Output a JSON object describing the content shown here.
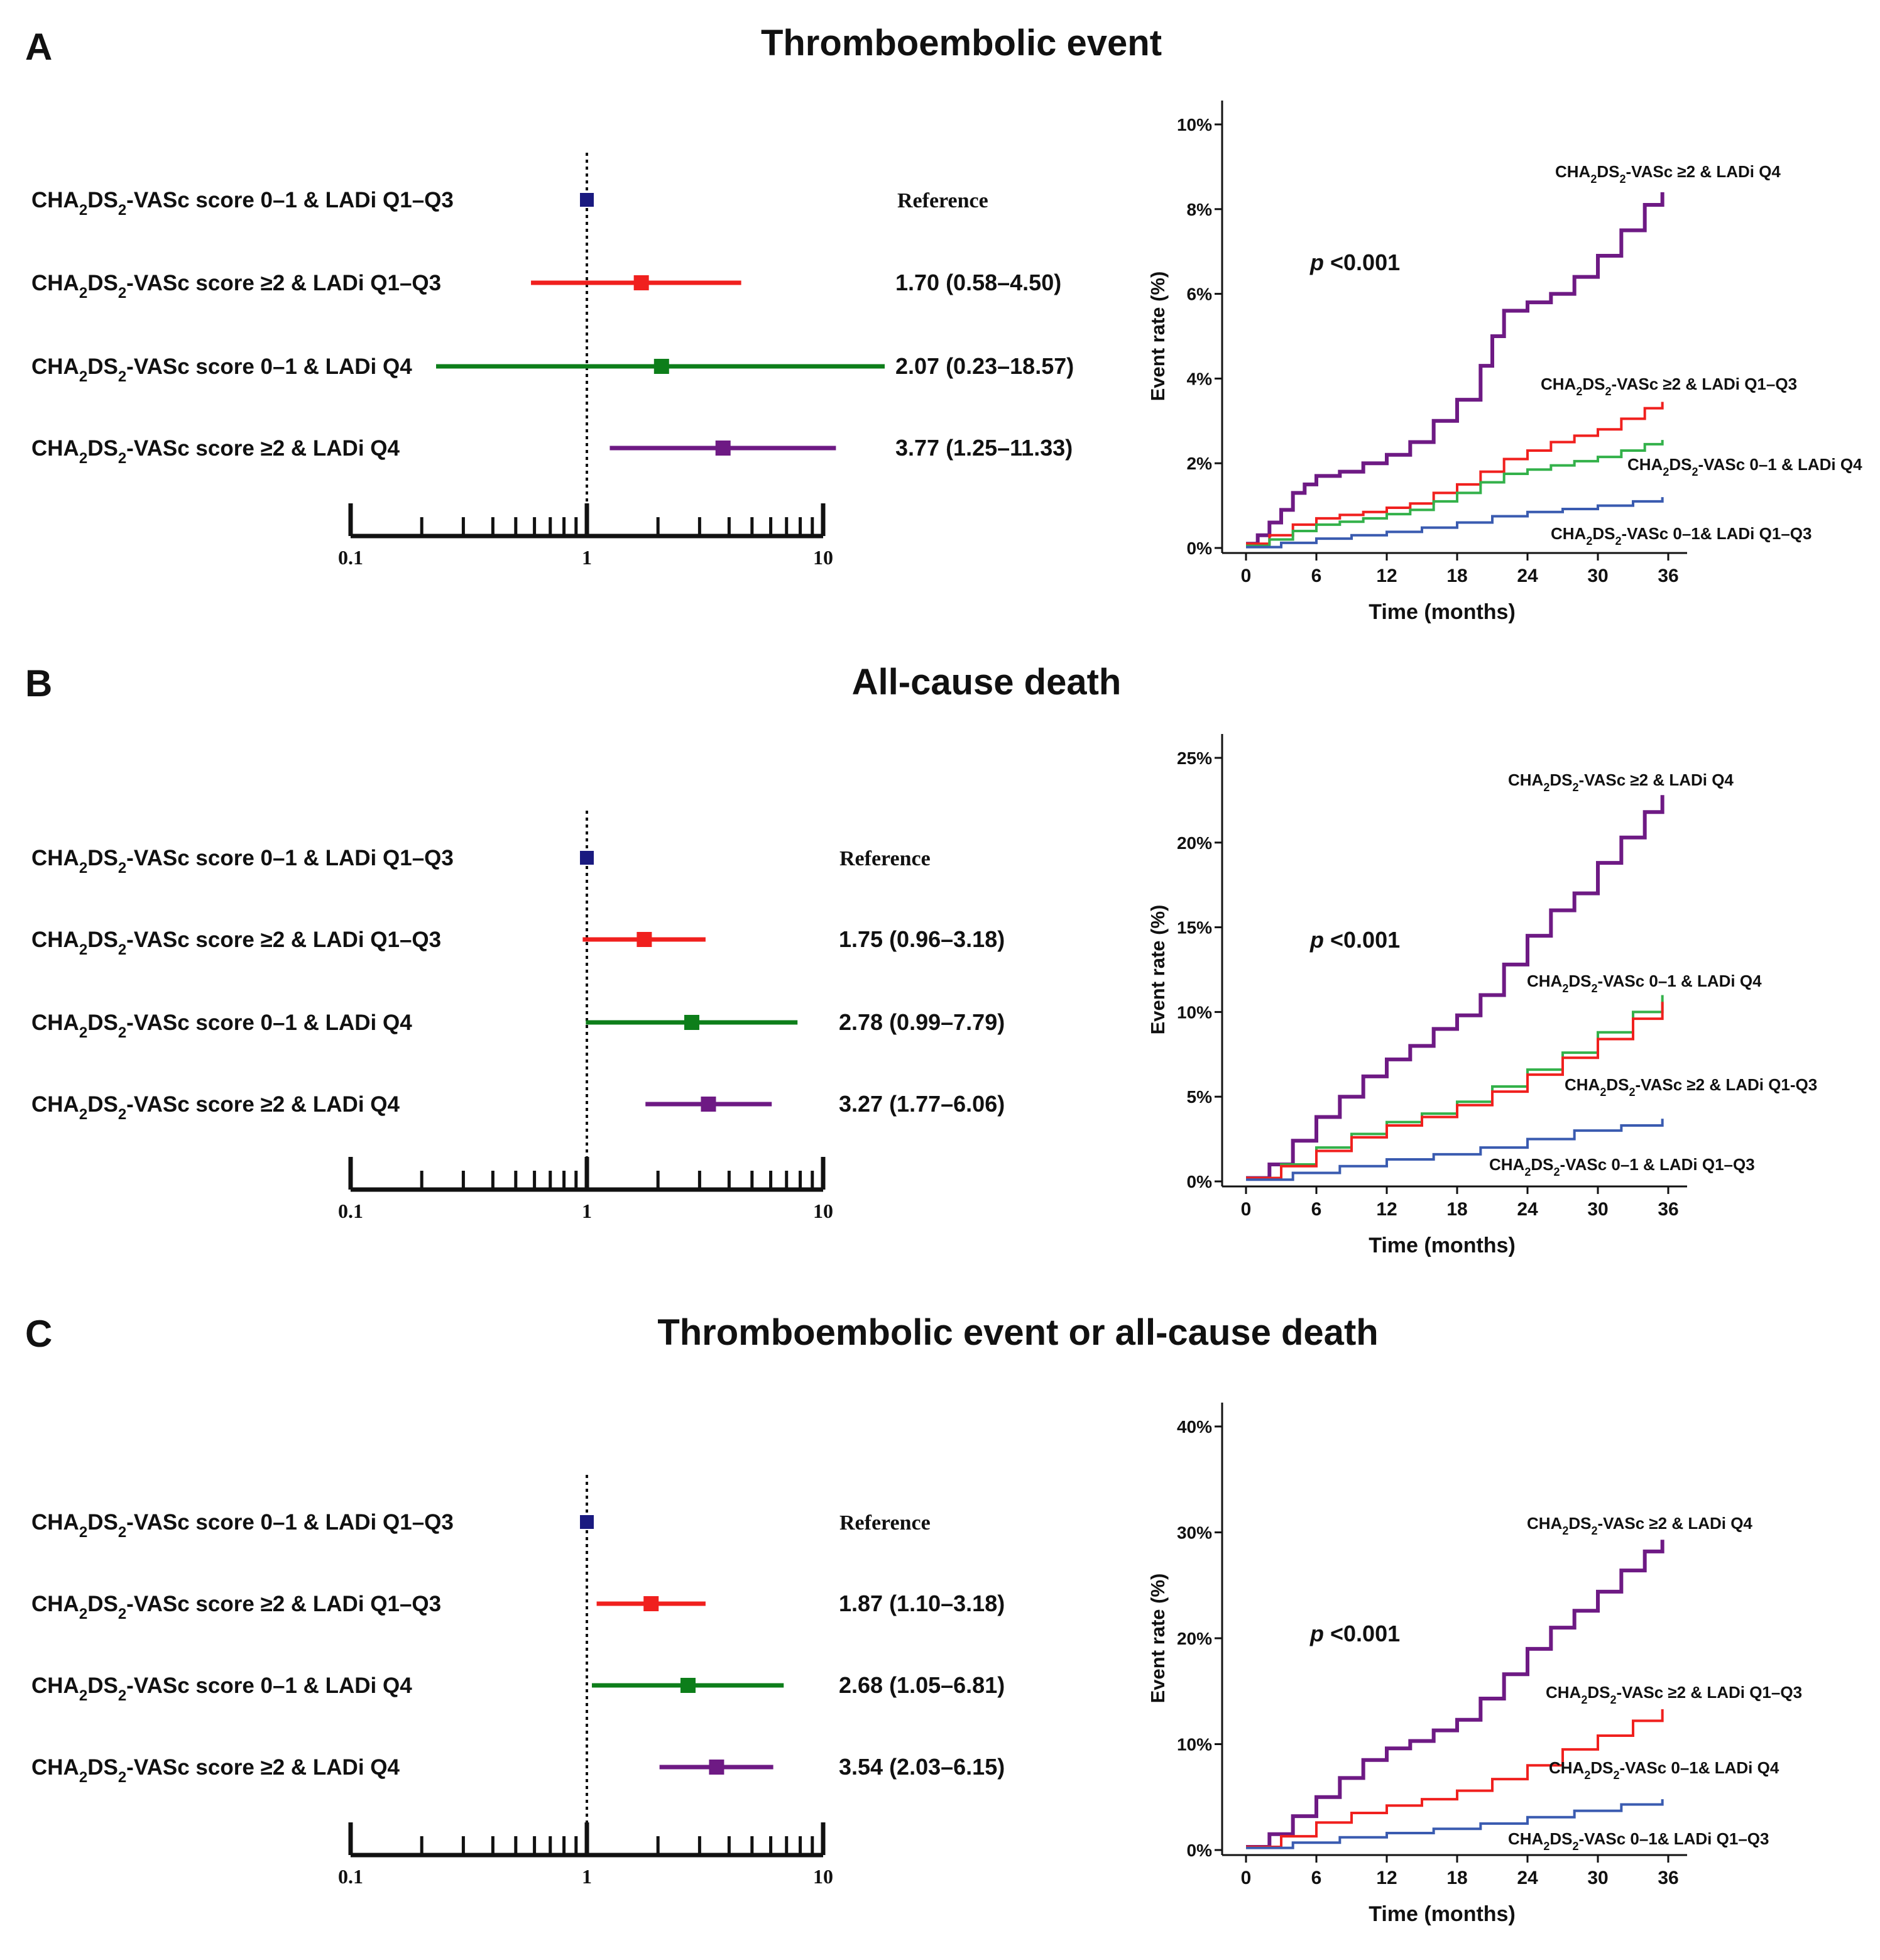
{
  "colors": {
    "blue": "#1a1a80",
    "red": "#f0201e",
    "green": "#0d7e1a",
    "purple": "#6e1a84",
    "km_blue": "#3a5bb0",
    "km_green": "#33b14a"
  },
  "forest_axis": {
    "scale": "log",
    "ticks": [
      {
        "value": 0.1,
        "label": "0.1"
      },
      {
        "value": 1,
        "label": "1"
      },
      {
        "value": 10,
        "label": "10"
      }
    ],
    "minor_ticks": [
      0.2,
      0.3,
      0.4,
      0.5,
      0.6,
      0.7,
      0.8,
      0.9,
      2,
      3,
      4,
      5,
      6,
      7,
      8,
      9
    ],
    "reference_value": 1
  },
  "row_labels": [
    {
      "pre": "CHA",
      "sub1": "2",
      "mid": "DS",
      "sub2": "2",
      "post": "-VASc score 0–1 & LADi Q1–Q3"
    },
    {
      "pre": "CHA",
      "sub1": "2",
      "mid": "DS",
      "sub2": "2",
      "post": "-VASc score ≥2 & LADi Q1–Q3"
    },
    {
      "pre": "CHA",
      "sub1": "2",
      "mid": "DS",
      "sub2": "2",
      "post": "-VASc score 0–1 & LADi Q4"
    },
    {
      "pre": "CHA",
      "sub1": "2",
      "mid": "DS",
      "sub2": "2",
      "post": "-VASc score ≥2 & LADi Q4"
    }
  ],
  "km_x_axis": {
    "label": "Time (months)",
    "ticks": [
      0,
      6,
      12,
      18,
      24,
      30,
      36
    ],
    "range": [
      0,
      36
    ]
  },
  "km_y_label": "Event rate (%)",
  "p_value": {
    "italic": "p",
    "rest": " <0.001"
  },
  "panels": [
    {
      "letter": "A",
      "title": "Thromboembolic event",
      "chart_data": [
        {
          "type": "forest",
          "rows": [
            {
              "hr": 1,
              "lo": null,
              "hi": null,
              "text": "Reference",
              "color": "blue"
            },
            {
              "hr": 1.7,
              "lo": 0.58,
              "hi": 4.5,
              "text": "1.70 (0.58–4.50)",
              "color": "red"
            },
            {
              "hr": 2.07,
              "lo": 0.23,
              "hi": 18.57,
              "text": "2.07 (0.23–18.57)",
              "color": "green"
            },
            {
              "hr": 3.77,
              "lo": 1.25,
              "hi": 11.33,
              "text": "3.77 (1.25–11.33)",
              "color": "purple"
            }
          ]
        },
        {
          "type": "line",
          "y_ticks": [
            0,
            2,
            4,
            6,
            8,
            10
          ],
          "y_tick_suffix": "%",
          "ylim": [
            0,
            10
          ],
          "series": [
            {
              "name": "CHA2DS2-VASc ≥2 & LADi Q4",
              "color": "purple",
              "x": [
                0,
                1,
                2,
                3,
                4,
                5,
                6,
                8,
                10,
                12,
                14,
                16,
                18,
                20,
                21,
                22,
                24,
                26,
                28,
                30,
                32,
                34,
                35.5
              ],
              "y": [
                0.1,
                0.3,
                0.6,
                0.9,
                1.3,
                1.5,
                1.7,
                1.8,
                2.0,
                2.2,
                2.5,
                3.0,
                3.5,
                4.3,
                5.0,
                5.6,
                5.8,
                6.0,
                6.4,
                6.9,
                7.5,
                8.1,
                8.4
              ],
              "label": {
                "pre": "CHA",
                "sub1": "2",
                "mid": "DS",
                "sub2": "2",
                "post": "-VASc ≥2 & LADi Q4"
              }
            },
            {
              "name": "CHA2DS2-VASc ≥2 & LADi Q1–Q3",
              "color": "red",
              "x": [
                0,
                2,
                4,
                6,
                8,
                10,
                12,
                14,
                16,
                18,
                20,
                22,
                24,
                26,
                28,
                30,
                32,
                34,
                35.5
              ],
              "y": [
                0.1,
                0.3,
                0.55,
                0.7,
                0.78,
                0.85,
                0.95,
                1.05,
                1.3,
                1.5,
                1.8,
                2.1,
                2.3,
                2.5,
                2.65,
                2.8,
                3.05,
                3.3,
                3.45
              ],
              "label": {
                "pre": "CHA",
                "sub1": "2",
                "mid": "DS",
                "sub2": "2",
                "post": "-VASc ≥2 & LADi Q1–Q3"
              }
            },
            {
              "name": "CHA2DS2-VASc 0–1 & LADi Q4",
              "color": "km_green",
              "x": [
                0,
                2,
                4,
                6,
                8,
                10,
                12,
                14,
                16,
                18,
                20,
                22,
                24,
                26,
                28,
                30,
                32,
                34,
                35.5
              ],
              "y": [
                0.05,
                0.2,
                0.4,
                0.55,
                0.62,
                0.7,
                0.8,
                0.9,
                1.1,
                1.3,
                1.55,
                1.75,
                1.85,
                1.95,
                2.05,
                2.15,
                2.3,
                2.45,
                2.55
              ],
              "label": {
                "pre": "CHA",
                "sub1": "2",
                "mid": "DS",
                "sub2": "2",
                "post": "-VASc 0–1 & LADi Q4"
              }
            },
            {
              "name": "CHA2DS2-VASc 0–1 & LADi Q1–Q3",
              "color": "km_blue",
              "x": [
                0,
                3,
                6,
                9,
                12,
                15,
                18,
                21,
                24,
                27,
                30,
                33,
                35.5
              ],
              "y": [
                0.02,
                0.12,
                0.22,
                0.3,
                0.38,
                0.48,
                0.6,
                0.75,
                0.85,
                0.92,
                1.0,
                1.1,
                1.2
              ],
              "label": {
                "pre": "CHA",
                "sub1": "2",
                "mid": "DS",
                "sub2": "2",
                "post": "-VASc 0–1& LADi Q1–Q3"
              }
            }
          ]
        }
      ]
    },
    {
      "letter": "B",
      "title": "All-cause death",
      "chart_data": [
        {
          "type": "forest",
          "rows": [
            {
              "hr": 1,
              "lo": null,
              "hi": null,
              "text": "Reference",
              "color": "blue"
            },
            {
              "hr": 1.75,
              "lo": 0.96,
              "hi": 3.18,
              "text": "1.75 (0.96–3.18)",
              "color": "red"
            },
            {
              "hr": 2.78,
              "lo": 0.99,
              "hi": 7.79,
              "text": "2.78 (0.99–7.79)",
              "color": "green"
            },
            {
              "hr": 3.27,
              "lo": 1.77,
              "hi": 6.06,
              "text": "3.27 (1.77–6.06)",
              "color": "purple"
            }
          ]
        },
        {
          "type": "line",
          "y_ticks": [
            0,
            5,
            10,
            15,
            20,
            25
          ],
          "y_tick_suffix": "%",
          "ylim": [
            0,
            25
          ],
          "series": [
            {
              "name": "CHA2DS2-VASc ≥2 & LADi Q4",
              "color": "purple",
              "x": [
                0,
                2,
                4,
                6,
                8,
                10,
                12,
                14,
                16,
                18,
                20,
                22,
                24,
                26,
                28,
                30,
                32,
                34,
                35.5
              ],
              "y": [
                0.2,
                1.0,
                2.4,
                3.8,
                5.0,
                6.2,
                7.2,
                8.0,
                9.0,
                9.8,
                11.0,
                12.8,
                14.5,
                16.0,
                17.0,
                18.8,
                20.3,
                21.8,
                22.8
              ],
              "label": {
                "pre": "CHA",
                "sub1": "2",
                "mid": "DS",
                "sub2": "2",
                "post": "-VASc ≥2 & LADi Q4"
              }
            },
            {
              "name": "CHA2DS2-VASc 0–1 & LADi Q4",
              "color": "km_green",
              "x": [
                0,
                3,
                6,
                9,
                12,
                15,
                18,
                21,
                24,
                27,
                30,
                33,
                35.5
              ],
              "y": [
                0.2,
                1.0,
                2.0,
                2.8,
                3.5,
                4.0,
                4.7,
                5.6,
                6.6,
                7.6,
                8.8,
                10.0,
                11.0
              ],
              "label": {
                "pre": "CHA",
                "sub1": "2",
                "mid": "DS",
                "sub2": "2",
                "post": "-VASc 0–1 & LADi Q4"
              }
            },
            {
              "name": "CHA2DS2-VASc ≥2 & LADi Q1-Q3",
              "color": "red",
              "x": [
                0,
                3,
                6,
                9,
                12,
                15,
                18,
                21,
                24,
                27,
                30,
                33,
                35.5
              ],
              "y": [
                0.2,
                0.9,
                1.8,
                2.6,
                3.3,
                3.8,
                4.5,
                5.3,
                6.3,
                7.3,
                8.4,
                9.6,
                10.6
              ],
              "label": {
                "pre": "CHA",
                "sub1": "2",
                "mid": "DS",
                "sub2": "2",
                "post": "-VASc ≥2 & LADi Q1-Q3"
              }
            },
            {
              "name": "CHA2DS2-VASc 0–1 & LADi Q1–Q3",
              "color": "km_blue",
              "x": [
                0,
                4,
                8,
                12,
                16,
                20,
                24,
                28,
                32,
                35.5
              ],
              "y": [
                0.1,
                0.5,
                0.9,
                1.3,
                1.6,
                2.0,
                2.5,
                3.0,
                3.3,
                3.7
              ],
              "label": {
                "pre": "CHA",
                "sub1": "2",
                "mid": "DS",
                "sub2": "2",
                "post": "-VASc 0–1 & LADi Q1–Q3"
              }
            }
          ]
        }
      ]
    },
    {
      "letter": "C",
      "title": "Thromboembolic event or all-cause death",
      "chart_data": [
        {
          "type": "forest",
          "rows": [
            {
              "hr": 1,
              "lo": null,
              "hi": null,
              "text": "Reference",
              "color": "blue"
            },
            {
              "hr": 1.87,
              "lo": 1.1,
              "hi": 3.18,
              "text": "1.87 (1.10–3.18)",
              "color": "red"
            },
            {
              "hr": 2.68,
              "lo": 1.05,
              "hi": 6.81,
              "text": "2.68 (1.05–6.81)",
              "color": "green"
            },
            {
              "hr": 3.54,
              "lo": 2.03,
              "hi": 6.15,
              "text": "3.54 (2.03–6.15)",
              "color": "purple"
            }
          ]
        },
        {
          "type": "line",
          "y_ticks": [
            0,
            10,
            20,
            30,
            40
          ],
          "y_tick_suffix": "%",
          "ylim": [
            0,
            40
          ],
          "series": [
            {
              "name": "CHA2DS2-VASc ≥2 & LADi Q4",
              "color": "purple",
              "x": [
                0,
                2,
                4,
                6,
                8,
                10,
                12,
                14,
                16,
                18,
                20,
                22,
                24,
                26,
                28,
                30,
                32,
                34,
                35.5
              ],
              "y": [
                0.3,
                1.5,
                3.2,
                5.0,
                6.8,
                8.5,
                9.6,
                10.3,
                11.3,
                12.3,
                14.3,
                16.6,
                19.0,
                21.0,
                22.6,
                24.4,
                26.4,
                28.2,
                29.3
              ],
              "label": {
                "pre": "CHA",
                "sub1": "2",
                "mid": "DS",
                "sub2": "2",
                "post": "-VASc ≥2 & LADi Q4"
              }
            },
            {
              "name": "CHA2DS2-VASc ≥2 & LADi Q1–Q3",
              "color": "red",
              "x": [
                0,
                3,
                6,
                9,
                12,
                15,
                18,
                21,
                24,
                27,
                30,
                33,
                35.5
              ],
              "y": [
                0.3,
                1.3,
                2.6,
                3.5,
                4.2,
                4.8,
                5.6,
                6.7,
                8.0,
                9.5,
                10.8,
                12.2,
                13.3
              ],
              "label": {
                "pre": "CHA",
                "sub1": "2",
                "mid": "DS",
                "sub2": "2",
                "post": "-VASc ≥2 & LADi Q1–Q3"
              }
            },
            {
              "name": "CHA2DS2-VASc 0–1 & LADi Q4",
              "color": "km_green",
              "x": [],
              "y": [],
              "label": {
                "pre": "CHA",
                "sub1": "2",
                "mid": "DS",
                "sub2": "2",
                "post": "-VASc 0–1& LADi Q4"
              }
            },
            {
              "name": "CHA2DS2-VASc 0–1 & LADi Q1–Q3",
              "color": "km_blue",
              "x": [
                0,
                4,
                8,
                12,
                16,
                20,
                24,
                28,
                32,
                35.5
              ],
              "y": [
                0.2,
                0.7,
                1.2,
                1.6,
                2.0,
                2.5,
                3.1,
                3.7,
                4.3,
                4.8
              ],
              "label": {
                "pre": "CHA",
                "sub1": "2",
                "mid": "DS",
                "sub2": "2",
                "post": "-VASc 0–1& LADi Q1–Q3"
              }
            }
          ]
        }
      ]
    }
  ]
}
